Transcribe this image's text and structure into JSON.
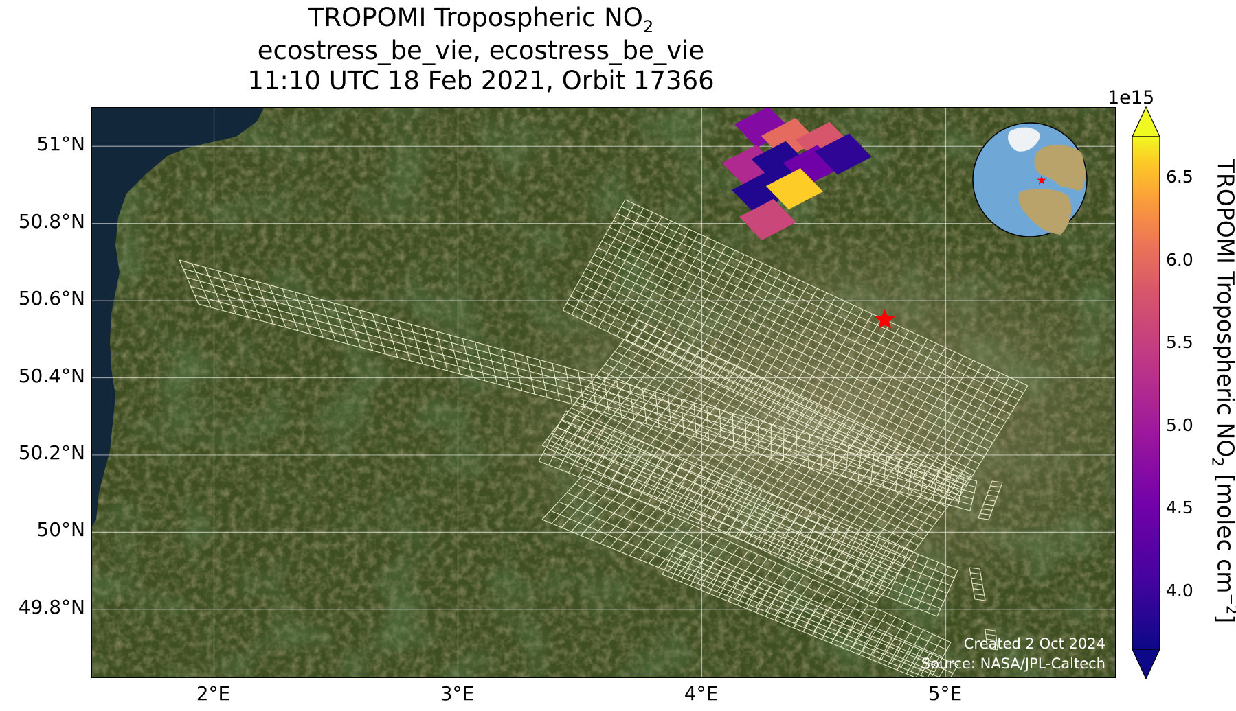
{
  "title": {
    "line1_prefix": "TROPOMI Tropospheric NO",
    "line1_sub": "2",
    "line2": "ecostress_be_vie, ecostress_be_vie",
    "line3": "11:10 UTC 18 Feb 2021, Orbit 17366"
  },
  "map": {
    "extent": {
      "lon": [
        1.5,
        5.7
      ],
      "lat": [
        49.62,
        51.1
      ]
    },
    "lat_ticks": [
      {
        "value": 51.0,
        "label": "51°N"
      },
      {
        "value": 50.8,
        "label": "50.8°N"
      },
      {
        "value": 50.6,
        "label": "50.6°N"
      },
      {
        "value": 50.4,
        "label": "50.4°N"
      },
      {
        "value": 50.2,
        "label": "50.2°N"
      },
      {
        "value": 50.0,
        "label": "50°N"
      },
      {
        "value": 49.8,
        "label": "49.8°N"
      }
    ],
    "lon_ticks": [
      {
        "value": 2.0,
        "label": "2°E"
      },
      {
        "value": 3.0,
        "label": "3°E"
      },
      {
        "value": 4.0,
        "label": "4°E"
      },
      {
        "value": 5.0,
        "label": "5°E"
      }
    ],
    "gridlines": true,
    "target_marker": {
      "lon": 4.75,
      "lat": 50.55,
      "symbol": "star",
      "color": "#ff0000"
    },
    "basemap": "satellite-imagery",
    "sea_color": "#13273a",
    "land_color": "#3f4f22",
    "footprint_color": "#f5f5dc",
    "credit_line1": "Created 2 Oct 2024",
    "credit_line2": "Source: NASA/JPL-Caltech"
  },
  "no2_pixels": [
    {
      "lon": 4.25,
      "lat": 51.05,
      "value": 4.7
    },
    {
      "lon": 4.36,
      "lat": 51.02,
      "value": 6.0
    },
    {
      "lon": 4.5,
      "lat": 51.01,
      "value": 5.8
    },
    {
      "lon": 4.2,
      "lat": 50.95,
      "value": 5.2
    },
    {
      "lon": 4.32,
      "lat": 50.96,
      "value": 3.8
    },
    {
      "lon": 4.45,
      "lat": 50.95,
      "value": 4.5
    },
    {
      "lon": 4.58,
      "lat": 50.98,
      "value": 3.9
    },
    {
      "lon": 4.24,
      "lat": 50.88,
      "value": 3.8
    },
    {
      "lon": 4.38,
      "lat": 50.89,
      "value": 6.6
    },
    {
      "lon": 4.27,
      "lat": 50.81,
      "value": 5.6
    }
  ],
  "colorbar": {
    "colormap": "plasma",
    "range": [
      3.65,
      6.75
    ],
    "extend": "both",
    "exponent": "1e15",
    "ticks": [
      {
        "value": 4.0,
        "label": "4.0"
      },
      {
        "value": 4.5,
        "label": "4.5"
      },
      {
        "value": 5.0,
        "label": "5.0"
      },
      {
        "value": 5.5,
        "label": "5.5"
      },
      {
        "value": 6.0,
        "label": "6.0"
      },
      {
        "value": 6.5,
        "label": "6.5"
      }
    ],
    "label_prefix": "TROPOMI Tropospheric NO",
    "label_sub": "2",
    "label_mid": " [molec cm",
    "label_sup": "−2",
    "label_suffix": "]"
  },
  "inset_globe": {
    "ocean_color": "#6fa8d6",
    "land_color": "#b9a36a",
    "marker_color": "#ff0000"
  }
}
